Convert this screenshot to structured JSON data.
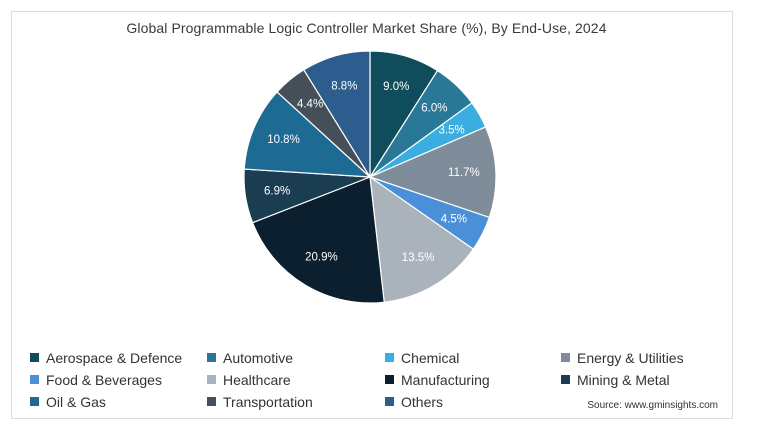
{
  "chart_data": {
    "type": "pie",
    "title": "Global Programmable Logic Controller Market Share (%), By End-Use, 2024",
    "slices": [
      {
        "name": "Aerospace & Defence",
        "value": 9.0,
        "label": "9.0%",
        "color": "#0f4c5c"
      },
      {
        "name": "Automotive",
        "value": 6.0,
        "label": "6.0%",
        "color": "#2a7898"
      },
      {
        "name": "Chemical",
        "value": 3.5,
        "label": "3.5%",
        "color": "#3aaee0"
      },
      {
        "name": "Energy & Utilities",
        "value": 11.7,
        "label": "11.7%",
        "color": "#7f8c99"
      },
      {
        "name": "Food & Beverages",
        "value": 4.5,
        "label": "4.5%",
        "color": "#4a90d9"
      },
      {
        "name": "Healthcare",
        "value": 13.5,
        "label": "13.5%",
        "color": "#aab3bb"
      },
      {
        "name": "Manufacturing",
        "value": 20.9,
        "label": "20.9%",
        "color": "#0b1f2e"
      },
      {
        "name": "Mining & Metal",
        "value": 6.9,
        "label": "6.9%",
        "color": "#1b3d52"
      },
      {
        "name": "Oil & Gas",
        "value": 10.8,
        "label": "10.8%",
        "color": "#1d6a93"
      },
      {
        "name": "Transportation",
        "value": 4.4,
        "label": "4.4%",
        "color": "#454f5a"
      },
      {
        "name": "Others",
        "value": 8.8,
        "label": "8.8%",
        "color": "#2c5d8e"
      }
    ],
    "legend": [
      "Aerospace & Defence",
      "Automotive",
      "Chemical",
      "Energy & Utilities",
      "Food & Beverages",
      "Healthcare",
      "Manufacturing",
      "Mining & Metal",
      "Oil & Gas",
      "Transportation",
      "Others"
    ],
    "legend_placement": "bottom",
    "start": "top",
    "direction": "clockwise"
  },
  "source": "Source: www.gminsights.com"
}
